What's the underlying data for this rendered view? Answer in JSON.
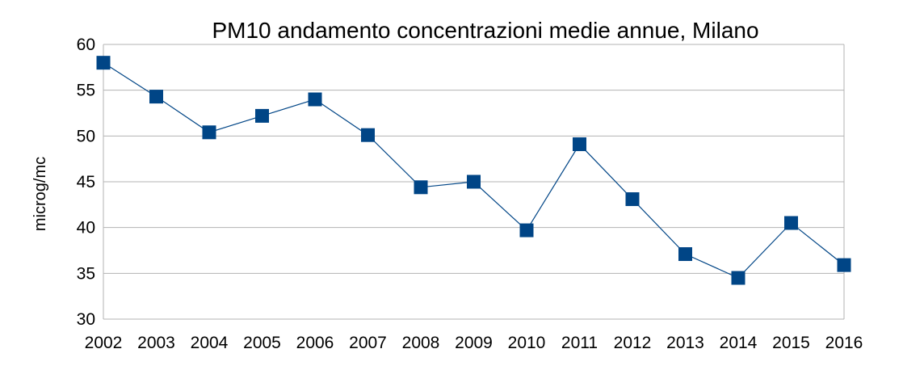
{
  "chart_data": {
    "type": "line",
    "title": "PM10  andamento concentrazioni medie annue, Milano",
    "xlabel": "",
    "ylabel": "microg/mc",
    "categories": [
      "2002",
      "2003",
      "2004",
      "2005",
      "2006",
      "2007",
      "2008",
      "2009",
      "2010",
      "2011",
      "2012",
      "2013",
      "2014",
      "2015",
      "2016"
    ],
    "series": [
      {
        "values": [
          58,
          54.3,
          50.4,
          52.2,
          54,
          50.1,
          44.4,
          45,
          39.7,
          49.1,
          43.1,
          37.1,
          34.5,
          40.5,
          35.9
        ]
      }
    ],
    "ylim": [
      30,
      60
    ],
    "yticks": [
      "30",
      "35",
      "40",
      "45",
      "50",
      "55",
      "60"
    ],
    "grid": "horizontal",
    "legend": "none",
    "colors": {
      "line": "#004586",
      "marker": "#004586",
      "grid": "#b3b3b3",
      "axis": "#b3b3b3"
    }
  }
}
